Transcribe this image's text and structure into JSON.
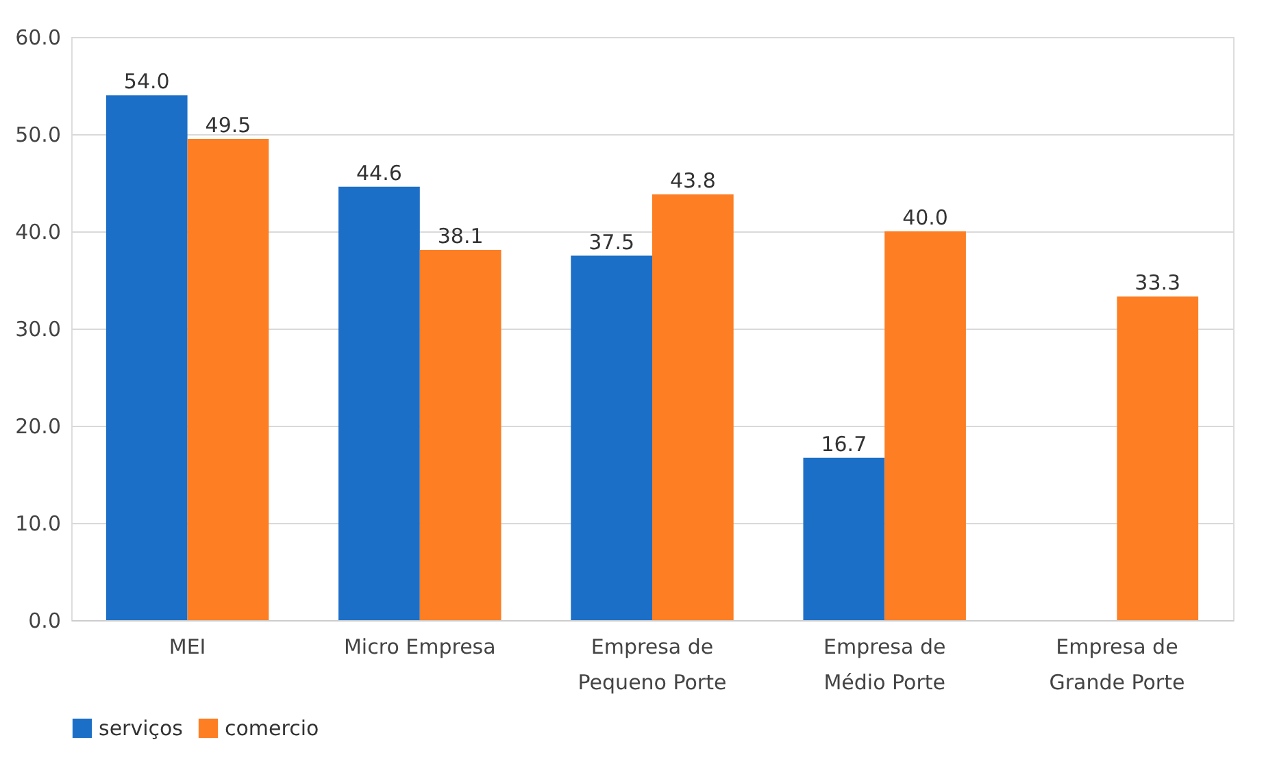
{
  "chart_data": {
    "type": "bar",
    "categories": [
      "MEI",
      "Micro Empresa",
      "Empresa de Pequeno Porte",
      "Empresa de Médio Porte",
      "Empresa de Grande Porte"
    ],
    "series": [
      {
        "name": "serviços",
        "color": "#1c6fc7",
        "values": [
          54.0,
          44.6,
          37.5,
          16.7,
          null
        ],
        "value_labels": [
          "54.0",
          "44.6",
          "37.5",
          "16.7",
          null
        ]
      },
      {
        "name": "comercio",
        "color": "#fd7e23",
        "values": [
          49.5,
          38.1,
          43.8,
          40.0,
          33.3
        ],
        "value_labels": [
          "49.5",
          "38.1",
          "43.8",
          "40.0",
          "33.3"
        ]
      }
    ],
    "ylim": [
      0,
      60
    ],
    "yticks": [
      {
        "value": 0,
        "label": "0.0"
      },
      {
        "value": 10,
        "label": "10.0"
      },
      {
        "value": 20,
        "label": "20.0"
      },
      {
        "value": 30,
        "label": "30.0"
      },
      {
        "value": 40,
        "label": "40.0"
      },
      {
        "value": 50,
        "label": "50.0"
      },
      {
        "value": 60,
        "label": "60.0"
      }
    ],
    "grid": "y",
    "legend": "bottom"
  }
}
